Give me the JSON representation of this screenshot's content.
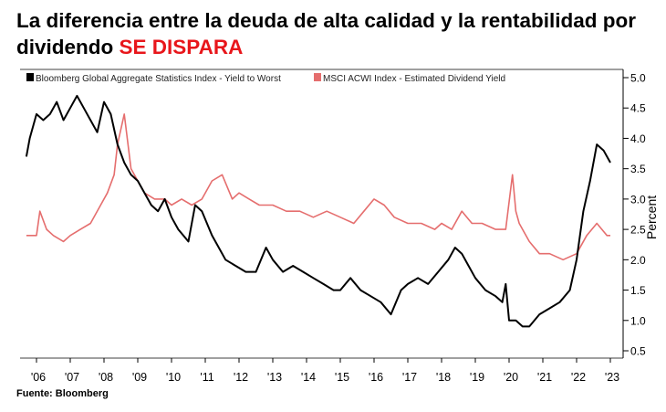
{
  "title": {
    "main": "La diferencia entre la deuda de alta calidad y la rentabilidad por dividendo",
    "highlight": "SE DISPARA"
  },
  "source": "Fuente: Bloomberg",
  "colors": {
    "series1": "#000000",
    "series2": "#e56e6e",
    "highlight": "#e8161b",
    "axis": "#000000"
  },
  "chart_data": {
    "type": "line",
    "title": "La diferencia entre la deuda de alta calidad y la rentabilidad por dividendo SE DISPARA",
    "ylabel": "Percent",
    "xlabel": "",
    "ylim": [
      0.5,
      5.0
    ],
    "xlim": [
      2005.7,
      2023.2
    ],
    "yticks": [
      "0.5",
      "1.0",
      "1.5",
      "2.0",
      "2.5",
      "3.0",
      "3.5",
      "4.0",
      "4.5",
      "5.0"
    ],
    "xticks": [
      "'06",
      "'07",
      "'08",
      "'09",
      "'10",
      "'11",
      "'12",
      "'13",
      "'14",
      "'15",
      "'16",
      "'17",
      "'18",
      "'19",
      "'20",
      "'21",
      "'22",
      "'23"
    ],
    "y_axis_position": "right",
    "legend_position": "top-left",
    "grid": false,
    "series": [
      {
        "name": "Bloomberg Global Aggregate Statistics Index - Yield to Worst",
        "color": "#000000",
        "x": [
          2005.7,
          2005.8,
          2006.0,
          2006.2,
          2006.4,
          2006.6,
          2006.8,
          2007.0,
          2007.2,
          2007.4,
          2007.6,
          2007.8,
          2008.0,
          2008.2,
          2008.4,
          2008.6,
          2008.8,
          2009.0,
          2009.2,
          2009.4,
          2009.6,
          2009.8,
          2010.0,
          2010.2,
          2010.5,
          2010.7,
          2010.9,
          2011.2,
          2011.4,
          2011.6,
          2011.9,
          2012.2,
          2012.5,
          2012.8,
          2013.0,
          2013.3,
          2013.6,
          2013.9,
          2014.2,
          2014.5,
          2014.8,
          2015.0,
          2015.3,
          2015.6,
          2015.9,
          2016.2,
          2016.5,
          2016.8,
          2017.0,
          2017.3,
          2017.6,
          2017.9,
          2018.2,
          2018.4,
          2018.6,
          2018.8,
          2019.0,
          2019.3,
          2019.6,
          2019.8,
          2019.9,
          2020.0,
          2020.2,
          2020.4,
          2020.6,
          2020.9,
          2021.2,
          2021.5,
          2021.8,
          2022.0,
          2022.2,
          2022.4,
          2022.6,
          2022.8,
          2023.0
        ],
        "values": [
          3.7,
          4.0,
          4.4,
          4.3,
          4.4,
          4.6,
          4.3,
          4.5,
          4.7,
          4.5,
          4.3,
          4.1,
          4.6,
          4.4,
          3.9,
          3.6,
          3.4,
          3.3,
          3.1,
          2.9,
          2.8,
          3.0,
          2.7,
          2.5,
          2.3,
          2.9,
          2.8,
          2.4,
          2.2,
          2.0,
          1.9,
          1.8,
          1.8,
          2.2,
          2.0,
          1.8,
          1.9,
          1.8,
          1.7,
          1.6,
          1.5,
          1.5,
          1.7,
          1.5,
          1.4,
          1.3,
          1.1,
          1.5,
          1.6,
          1.7,
          1.6,
          1.8,
          2.0,
          2.2,
          2.1,
          1.9,
          1.7,
          1.5,
          1.4,
          1.3,
          1.6,
          1.0,
          1.0,
          0.9,
          0.9,
          1.1,
          1.2,
          1.3,
          1.5,
          2.0,
          2.8,
          3.3,
          3.9,
          3.8,
          3.6
        ]
      },
      {
        "name": "MSCI ACWI Index - Estimated Dividend Yield",
        "color": "#e56e6e",
        "x": [
          2005.7,
          2006.0,
          2006.1,
          2006.3,
          2006.5,
          2006.8,
          2007.0,
          2007.3,
          2007.6,
          2007.9,
          2008.1,
          2008.3,
          2008.4,
          2008.6,
          2008.8,
          2009.0,
          2009.2,
          2009.5,
          2009.8,
          2010.0,
          2010.3,
          2010.6,
          2010.9,
          2011.2,
          2011.5,
          2011.8,
          2012.0,
          2012.3,
          2012.6,
          2013.0,
          2013.4,
          2013.8,
          2014.2,
          2014.6,
          2015.0,
          2015.4,
          2015.7,
          2016.0,
          2016.3,
          2016.6,
          2017.0,
          2017.4,
          2017.8,
          2018.0,
          2018.3,
          2018.6,
          2018.9,
          2019.2,
          2019.6,
          2019.9,
          2020.1,
          2020.2,
          2020.3,
          2020.6,
          2020.9,
          2021.2,
          2021.6,
          2022.0,
          2022.3,
          2022.6,
          2022.9,
          2023.0
        ],
        "values": [
          2.4,
          2.4,
          2.8,
          2.5,
          2.4,
          2.3,
          2.4,
          2.5,
          2.6,
          2.9,
          3.1,
          3.4,
          3.9,
          4.4,
          3.5,
          3.3,
          3.1,
          3.0,
          3.0,
          2.9,
          3.0,
          2.9,
          3.0,
          3.3,
          3.4,
          3.0,
          3.1,
          3.0,
          2.9,
          2.9,
          2.8,
          2.8,
          2.7,
          2.8,
          2.7,
          2.6,
          2.8,
          3.0,
          2.9,
          2.7,
          2.6,
          2.6,
          2.5,
          2.6,
          2.5,
          2.8,
          2.6,
          2.6,
          2.5,
          2.5,
          3.4,
          2.8,
          2.6,
          2.3,
          2.1,
          2.1,
          2.0,
          2.1,
          2.4,
          2.6,
          2.4,
          2.4
        ]
      }
    ]
  }
}
